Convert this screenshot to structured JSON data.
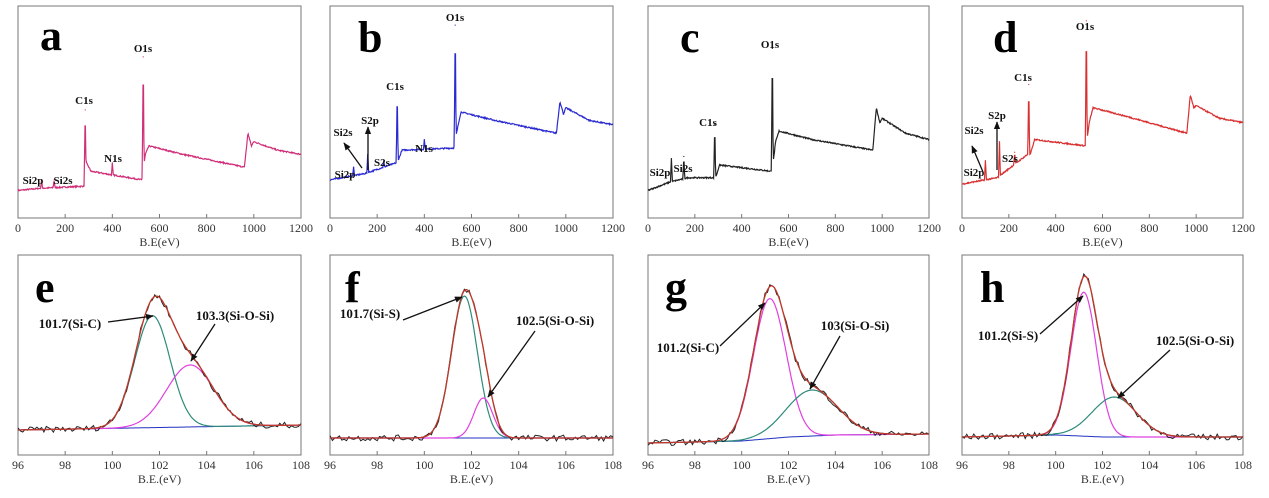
{
  "chart_data": [
    {
      "panel": "a",
      "type": "line",
      "xlabel": "B.E(eV)",
      "xlim": [
        0,
        1200
      ],
      "xticks": [
        0,
        200,
        400,
        600,
        800,
        1000,
        1200
      ],
      "color": "#d0307a",
      "baseline": [
        [
          0,
          13
        ],
        [
          95,
          14
        ],
        [
          280,
          15
        ],
        [
          290,
          26
        ],
        [
          310,
          22
        ],
        [
          525,
          18
        ],
        [
          540,
          30
        ],
        [
          555,
          34
        ],
        [
          700,
          30
        ],
        [
          960,
          24
        ],
        [
          975,
          40
        ],
        [
          990,
          34
        ],
        [
          1000,
          36
        ],
        [
          1100,
          32
        ],
        [
          1200,
          30
        ]
      ],
      "peaks": [
        {
          "x": 100,
          "y": 18
        },
        {
          "x": 153,
          "y": 18
        },
        {
          "x": 400,
          "y": 26
        },
        {
          "x": 285,
          "y": 51
        },
        {
          "x": 531,
          "y": 76
        }
      ],
      "annotations": [
        {
          "text": "Si2p",
          "x": 100
        },
        {
          "text": "Si2s",
          "x": 153
        },
        {
          "text": "N1s",
          "x": 400
        },
        {
          "text": "C1s",
          "x": 285
        },
        {
          "text": "O1s",
          "x": 531
        }
      ]
    },
    {
      "panel": "b",
      "type": "line",
      "xlabel": "B.E(eV)",
      "xlim": [
        0,
        1200
      ],
      "xticks": [
        0,
        200,
        400,
        600,
        800,
        1000,
        1200
      ],
      "color": "#2a2ad0",
      "baseline": [
        [
          0,
          18
        ],
        [
          150,
          21
        ],
        [
          280,
          26
        ],
        [
          292,
          28
        ],
        [
          305,
          32
        ],
        [
          525,
          33
        ],
        [
          540,
          42
        ],
        [
          555,
          50
        ],
        [
          700,
          46
        ],
        [
          960,
          40
        ],
        [
          975,
          55
        ],
        [
          990,
          49
        ],
        [
          1000,
          52
        ],
        [
          1100,
          46
        ],
        [
          1200,
          44
        ]
      ],
      "peaks": [
        {
          "x": 100,
          "y": 24
        },
        {
          "x": 160,
          "y": 30
        },
        {
          "x": 228,
          "y": 27
        },
        {
          "x": 400,
          "y": 37
        },
        {
          "x": 285,
          "y": 61
        },
        {
          "x": 531,
          "y": 91
        }
      ],
      "annotations": [
        {
          "text": "Si2p",
          "x": 100
        },
        {
          "text": "Si2s",
          "x": 150
        },
        {
          "text": "S2p",
          "x": 160
        },
        {
          "text": "S2s",
          "x": 228
        },
        {
          "text": "C1s",
          "x": 285
        },
        {
          "text": "N1s",
          "x": 400
        },
        {
          "text": "O1s",
          "x": 531
        }
      ]
    },
    {
      "panel": "c",
      "type": "line",
      "xlabel": "B.E(eV)",
      "xlim": [
        0,
        1200
      ],
      "xticks": [
        0,
        200,
        400,
        600,
        800,
        1000,
        1200
      ],
      "color": "#222222",
      "baseline": [
        [
          0,
          13
        ],
        [
          95,
          17
        ],
        [
          170,
          19
        ],
        [
          280,
          19
        ],
        [
          292,
          20
        ],
        [
          305,
          25
        ],
        [
          530,
          22
        ],
        [
          545,
          36
        ],
        [
          560,
          41
        ],
        [
          700,
          37
        ],
        [
          960,
          32
        ],
        [
          975,
          52
        ],
        [
          990,
          45
        ],
        [
          1000,
          47
        ],
        [
          1100,
          40
        ],
        [
          1200,
          37
        ]
      ],
      "peaks": [
        {
          "x": 100,
          "y": 28
        },
        {
          "x": 153,
          "y": 29
        },
        {
          "x": 285,
          "y": 44
        },
        {
          "x": 531,
          "y": 80
        }
      ],
      "annotations": [
        {
          "text": "Si2p",
          "x": 100
        },
        {
          "text": "Si2s",
          "x": 153
        },
        {
          "text": "C1s",
          "x": 285
        },
        {
          "text": "O1s",
          "x": 531
        }
      ]
    },
    {
      "panel": "d",
      "type": "line",
      "xlabel": "B.E(eV)",
      "xlim": [
        0,
        1200
      ],
      "xticks": [
        0,
        200,
        400,
        600,
        800,
        1000,
        1200
      ],
      "color": "#d83030",
      "baseline": [
        [
          0,
          16
        ],
        [
          150,
          19
        ],
        [
          280,
          30
        ],
        [
          292,
          30
        ],
        [
          310,
          37
        ],
        [
          530,
          34
        ],
        [
          545,
          46
        ],
        [
          560,
          52
        ],
        [
          700,
          48
        ],
        [
          960,
          40
        ],
        [
          975,
          58
        ],
        [
          990,
          52
        ],
        [
          1000,
          53
        ],
        [
          1100,
          47
        ],
        [
          1200,
          45
        ]
      ],
      "peaks": [
        {
          "x": 100,
          "y": 27
        },
        {
          "x": 160,
          "y": 36
        },
        {
          "x": 225,
          "y": 31
        },
        {
          "x": 285,
          "y": 63
        },
        {
          "x": 531,
          "y": 93
        }
      ],
      "annotations": [
        {
          "text": "Si2p",
          "x": 100
        },
        {
          "text": "Si2s",
          "x": 150
        },
        {
          "text": "S2p",
          "x": 160
        },
        {
          "text": "S2s",
          "x": 225
        },
        {
          "text": "C1s",
          "x": 285
        },
        {
          "text": "O1s",
          "x": 531
        }
      ]
    },
    {
      "panel": "e",
      "type": "line",
      "xlabel": "B.E.(eV)",
      "xlim": [
        96,
        108
      ],
      "xticks": [
        96,
        98,
        100,
        102,
        104,
        106,
        108
      ],
      "background": [
        [
          96,
          12.5
        ],
        [
          108,
          15
        ]
      ],
      "components": [
        {
          "label": "101.7(Si-C)",
          "center": 101.7,
          "height": 56,
          "sigma": 0.75,
          "color": "#2e8b7a"
        },
        {
          "label": "103.3(Si-O-Si)",
          "center": 103.3,
          "height": 31,
          "sigma": 1.0,
          "color": "#e040e0"
        }
      ],
      "envelope_color": "#c0392b",
      "raw_color": "#222222",
      "background_color": "#2030c0"
    },
    {
      "panel": "f",
      "type": "line",
      "xlabel": "B.E.(eV)",
      "xlim": [
        96,
        108
      ],
      "xticks": [
        96,
        98,
        100,
        102,
        104,
        106,
        108
      ],
      "background": [
        [
          96,
          8.5
        ],
        [
          108,
          8.5
        ]
      ],
      "components": [
        {
          "label": "101.7(Si-S)",
          "center": 101.7,
          "height": 71,
          "sigma": 0.55,
          "color": "#2e8b7a"
        },
        {
          "label": "102.5(Si-O-Si)",
          "center": 102.5,
          "height": 20,
          "sigma": 0.4,
          "color": "#e040e0"
        }
      ],
      "envelope_color": "#c0392b",
      "raw_color": "#222222",
      "background_color": "#2030c0"
    },
    {
      "panel": "g",
      "type": "line",
      "xlabel": "B.E.(eV)",
      "xlim": [
        96,
        108
      ],
      "xticks": [
        96,
        98,
        100,
        102,
        104,
        106,
        108
      ],
      "background": [
        [
          96,
          6
        ],
        [
          100,
          7
        ],
        [
          102,
          9
        ],
        [
          104,
          10
        ],
        [
          108,
          10.5
        ]
      ],
      "components": [
        {
          "label": "101.2(Si-C)",
          "center": 101.2,
          "height": 70,
          "sigma": 0.7,
          "color": "#e040e0"
        },
        {
          "label": "103(Si-O-Si)",
          "center": 103.0,
          "height": 23,
          "sigma": 1.1,
          "color": "#2e8b7a"
        }
      ],
      "envelope_color": "#c0392b",
      "raw_color": "#222222",
      "background_color": "#2030c0"
    },
    {
      "panel": "h",
      "type": "line",
      "xlabel": "B.E.(eV)",
      "xlim": [
        96,
        108
      ],
      "xticks": [
        96,
        98,
        100,
        102,
        104,
        106,
        108
      ],
      "background": [
        [
          96,
          9
        ],
        [
          100,
          10
        ],
        [
          102,
          9
        ],
        [
          108,
          9
        ]
      ],
      "components": [
        {
          "label": "101.2(Si-S)",
          "center": 101.2,
          "height": 72,
          "sigma": 0.55,
          "color": "#e040e0"
        },
        {
          "label": "102.5(Si-O-Si)",
          "center": 102.5,
          "height": 20,
          "sigma": 0.95,
          "color": "#2e8b7a"
        }
      ],
      "envelope_color": "#c0392b",
      "raw_color": "#222222",
      "background_color": "#2030c0"
    }
  ]
}
